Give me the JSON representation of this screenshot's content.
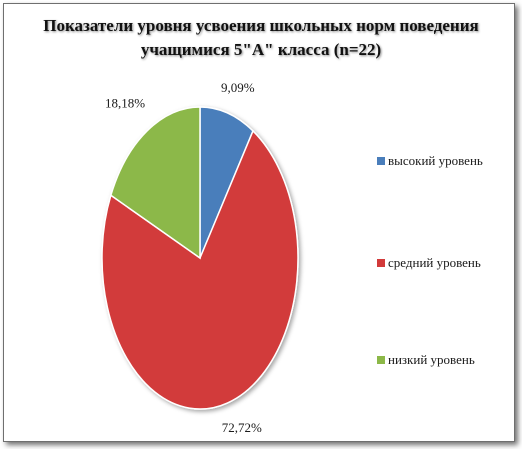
{
  "chart_data": {
    "type": "pie",
    "title_lines": [
      "Показатели уровня усвоения школьных норм поведения",
      "учащимися 5\"А\" класса (n=22)"
    ],
    "categories": [
      "высокий уровень",
      "средний уровень",
      "низкий уровень"
    ],
    "values": [
      9.09,
      72.72,
      18.18
    ],
    "data_labels": [
      "9,09%",
      "72,72%",
      "18,18%"
    ],
    "colors": [
      "#4a7ebb",
      "#d23a3a",
      "#8cb848"
    ],
    "legend_placement": "right",
    "start_angle": "12 o'clock",
    "direction": "clockwise"
  }
}
